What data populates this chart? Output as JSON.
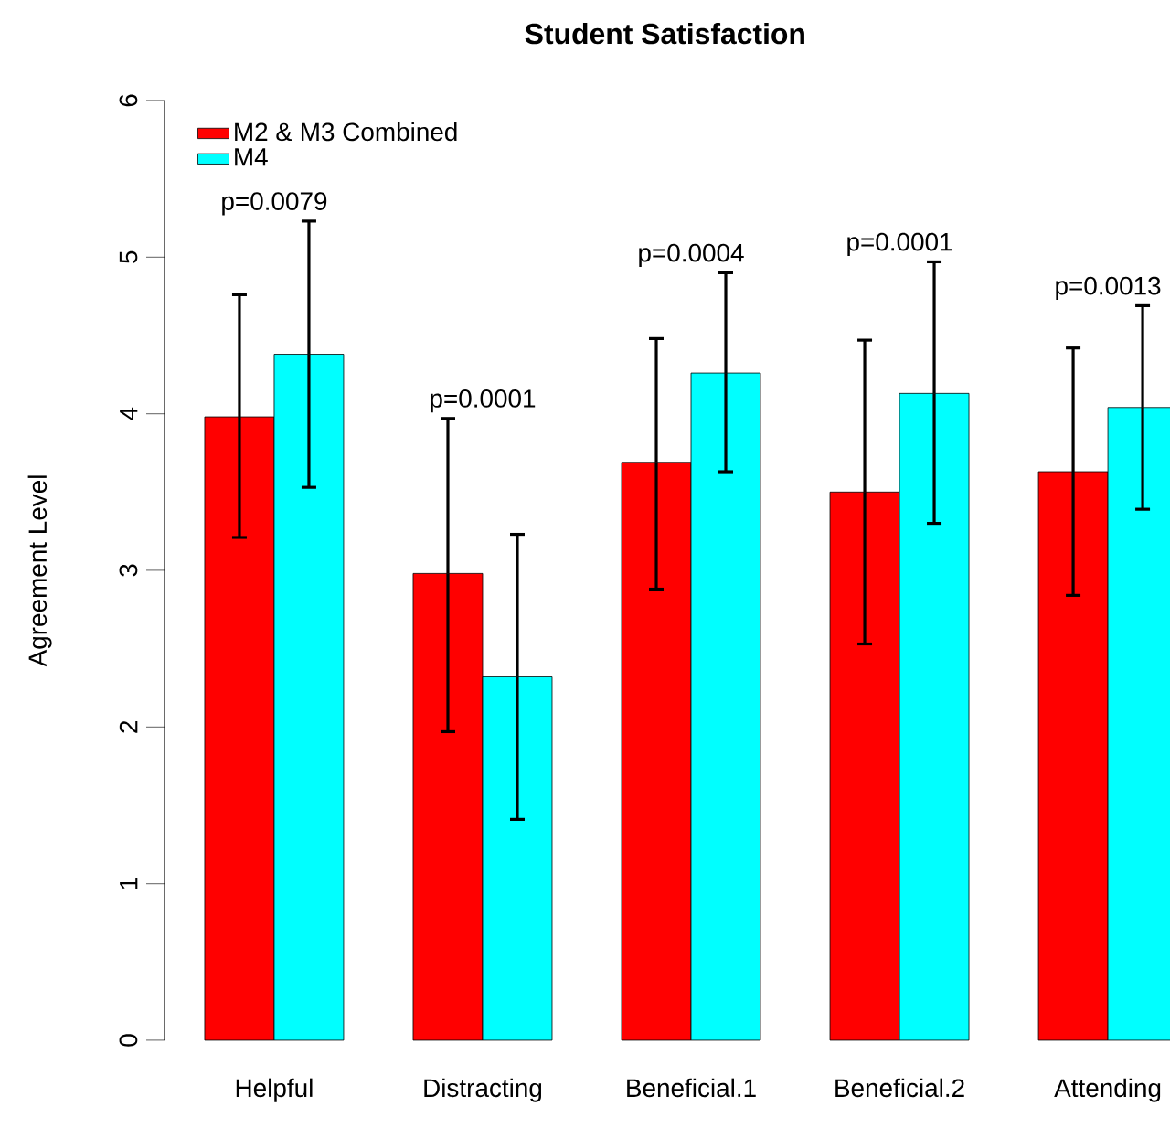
{
  "chart_data": {
    "type": "bar",
    "title": "Student Satisfaction",
    "ylabel": "Agreement Level",
    "categories": [
      "Helpful",
      "Distracting",
      "Beneficial.1",
      "Beneficial.2",
      "Attending"
    ],
    "series": [
      {
        "name": "M2 & M3 Combined",
        "color": "#ff0000",
        "values": [
          3.98,
          2.98,
          3.69,
          3.5,
          3.63
        ],
        "errors": [
          [
            3.21,
            4.76
          ],
          [
            1.97,
            3.97
          ],
          [
            2.88,
            4.48
          ],
          [
            2.53,
            4.47
          ],
          [
            2.84,
            4.42
          ]
        ]
      },
      {
        "name": "M4",
        "color": "#00ffff",
        "values": [
          4.38,
          2.32,
          4.26,
          4.13,
          4.04
        ],
        "errors": [
          [
            3.53,
            5.23
          ],
          [
            1.41,
            3.23
          ],
          [
            3.63,
            4.9
          ],
          [
            3.3,
            4.97
          ],
          [
            3.39,
            4.69
          ]
        ]
      }
    ],
    "ylim": [
      0,
      6
    ],
    "yticks": [
      0,
      1,
      2,
      3,
      4,
      5,
      6
    ],
    "legend": "top left",
    "grid": false,
    "annotations": [
      "p=0.0079",
      "p=0.0001",
      "p=0.0004",
      "p=0.0001",
      "p=0.0013"
    ]
  }
}
